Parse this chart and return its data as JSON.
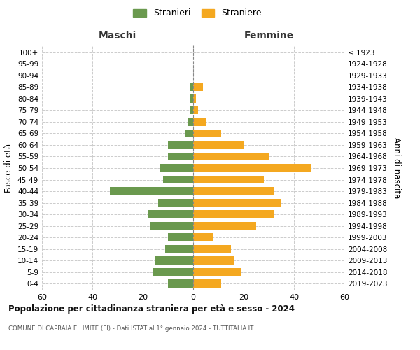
{
  "age_groups": [
    "0-4",
    "5-9",
    "10-14",
    "15-19",
    "20-24",
    "25-29",
    "30-34",
    "35-39",
    "40-44",
    "45-49",
    "50-54",
    "55-59",
    "60-64",
    "65-69",
    "70-74",
    "75-79",
    "80-84",
    "85-89",
    "90-94",
    "95-99",
    "100+"
  ],
  "birth_years": [
    "2019-2023",
    "2014-2018",
    "2009-2013",
    "2004-2008",
    "1999-2003",
    "1994-1998",
    "1989-1993",
    "1984-1988",
    "1979-1983",
    "1974-1978",
    "1969-1973",
    "1964-1968",
    "1959-1963",
    "1954-1958",
    "1949-1953",
    "1944-1948",
    "1939-1943",
    "1934-1938",
    "1929-1933",
    "1924-1928",
    "≤ 1923"
  ],
  "males": [
    10,
    16,
    15,
    11,
    10,
    17,
    18,
    14,
    33,
    12,
    13,
    10,
    10,
    3,
    2,
    1,
    1,
    1,
    0,
    0,
    0
  ],
  "females": [
    11,
    19,
    16,
    15,
    8,
    25,
    32,
    35,
    32,
    28,
    47,
    30,
    20,
    11,
    5,
    2,
    1,
    4,
    0,
    0,
    0
  ],
  "male_color": "#6a994e",
  "female_color": "#f4a820",
  "male_label": "Stranieri",
  "female_label": "Straniere",
  "title": "Popolazione per cittadinanza straniera per età e sesso - 2024",
  "subtitle": "COMUNE DI CAPRAIA E LIMITE (FI) - Dati ISTAT al 1° gennaio 2024 - TUTTITALIA.IT",
  "xlabel_left": "Maschi",
  "xlabel_right": "Femmine",
  "ylabel_left": "Fasce di età",
  "ylabel_right": "Anni di nascita",
  "xlim": 60,
  "background_color": "#ffffff",
  "grid_color": "#cccccc"
}
